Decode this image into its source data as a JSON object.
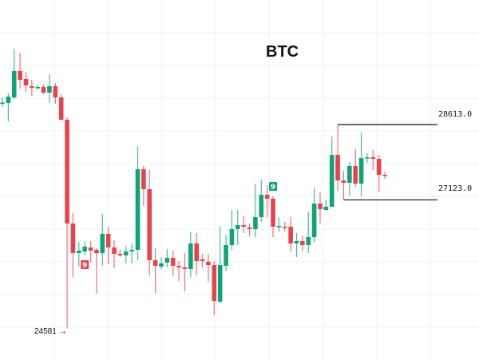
{
  "chart_data": {
    "type": "candlestick",
    "title": "BTC",
    "grid": true,
    "colors": {
      "up": "#0ea47a",
      "down": "#e8434c",
      "grid": "#eef1f4",
      "level_line": "#111111"
    },
    "ylim": [
      24400,
      30400
    ],
    "candles": [
      [
        29042,
        29152,
        28963,
        29050
      ],
      [
        29042,
        29231,
        28678,
        29168
      ],
      [
        29152,
        30116,
        29121,
        29674
      ],
      [
        29674,
        30037,
        29326,
        29500
      ],
      [
        29516,
        29658,
        29263,
        29389
      ],
      [
        29374,
        29500,
        29184,
        29342
      ],
      [
        29342,
        29405,
        29310,
        29358
      ],
      [
        29358,
        29405,
        29216,
        29247
      ],
      [
        29247,
        29611,
        29042,
        29374
      ],
      [
        29374,
        29437,
        29026,
        29152
      ],
      [
        29152,
        29216,
        28700,
        28710
      ],
      [
        28710,
        28757,
        24581,
        26656
      ],
      [
        26656,
        26861,
        25597,
        26071
      ],
      [
        26071,
        26293,
        25803,
        26119
      ],
      [
        26103,
        26308,
        26024,
        26198
      ],
      [
        26182,
        26308,
        25882,
        26119
      ],
      [
        26135,
        26166,
        25266,
        26071
      ],
      [
        26071,
        26846,
        25819,
        26451
      ],
      [
        26451,
        26593,
        25850,
        26182
      ],
      [
        26182,
        26324,
        25771,
        26056
      ],
      [
        26056,
        26135,
        25992,
        26024
      ],
      [
        26024,
        26214,
        25866,
        26103
      ],
      [
        26103,
        26261,
        25866,
        26135
      ],
      [
        26135,
        28189,
        25929,
        27730
      ],
      [
        27730,
        27794,
        27004,
        27335
      ],
      [
        27335,
        27715,
        25629,
        25929
      ],
      [
        25929,
        26166,
        25281,
        25819
      ],
      [
        25803,
        25992,
        25755,
        25866
      ],
      [
        25882,
        26150,
        25787,
        25977
      ],
      [
        25977,
        26119,
        25613,
        25819
      ],
      [
        25819,
        25913,
        25518,
        25787
      ],
      [
        25787,
        26071,
        25313,
        25755
      ],
      [
        25755,
        26482,
        25597,
        26261
      ],
      [
        26261,
        26466,
        25629,
        25913
      ],
      [
        25945,
        26056,
        25787,
        25913
      ],
      [
        25898,
        26056,
        25503,
        25834
      ],
      [
        25834,
        25913,
        24839,
        25123
      ],
      [
        25108,
        26609,
        25076,
        25834
      ],
      [
        25819,
        26435,
        25708,
        26229
      ],
      [
        26229,
        26925,
        26135,
        26545
      ],
      [
        26545,
        26925,
        26229,
        26624
      ],
      [
        26624,
        26814,
        26466,
        26593
      ],
      [
        26577,
        26656,
        26403,
        26545
      ],
      [
        26545,
        27446,
        26387,
        26782
      ],
      [
        26782,
        27525,
        26688,
        27225
      ],
      [
        27225,
        27414,
        26782,
        27146
      ],
      [
        27146,
        27193,
        26387,
        26593
      ],
      [
        26593,
        26782,
        26498,
        26609
      ],
      [
        26593,
        26688,
        26498,
        26577
      ],
      [
        26593,
        26782,
        26103,
        26261
      ],
      [
        26261,
        26466,
        25992,
        26308
      ],
      [
        26308,
        26419,
        26103,
        26229
      ],
      [
        26229,
        26893,
        26071,
        26387
      ],
      [
        26387,
        27351,
        26293,
        27051
      ],
      [
        27051,
        27272,
        26656,
        26940
      ],
      [
        26925,
        27130,
        26920,
        26988
      ],
      [
        26988,
        28378,
        26980,
        28015
      ],
      [
        28015,
        28613,
        27304,
        27509
      ],
      [
        27509,
        27699,
        27123,
        27462
      ],
      [
        27462,
        27873,
        27209,
        27794
      ],
      [
        27794,
        28125,
        27383,
        27446
      ],
      [
        27446,
        28457,
        27193,
        27952
      ],
      [
        27952,
        28046,
        27857,
        27967
      ],
      [
        27967,
        28110,
        27715,
        27936
      ],
      [
        27936,
        28015,
        27288,
        27620
      ],
      [
        27620,
        27683,
        27541,
        27604
      ]
    ],
    "candle_format": [
      "open",
      "high",
      "low",
      "close"
    ],
    "annotations": {
      "low_label": "24581 →",
      "range_high": {
        "label": "28613.0",
        "value": 28613,
        "from_candle": 57
      },
      "range_low": {
        "label": "27123.0",
        "value": 27123,
        "from_candle": 58
      },
      "markers": [
        {
          "candle": 14,
          "text": "9",
          "position": "below",
          "color": "#e8434c"
        },
        {
          "candle": 46,
          "text": "9",
          "position": "above",
          "color": "#0ea47a"
        }
      ]
    }
  }
}
